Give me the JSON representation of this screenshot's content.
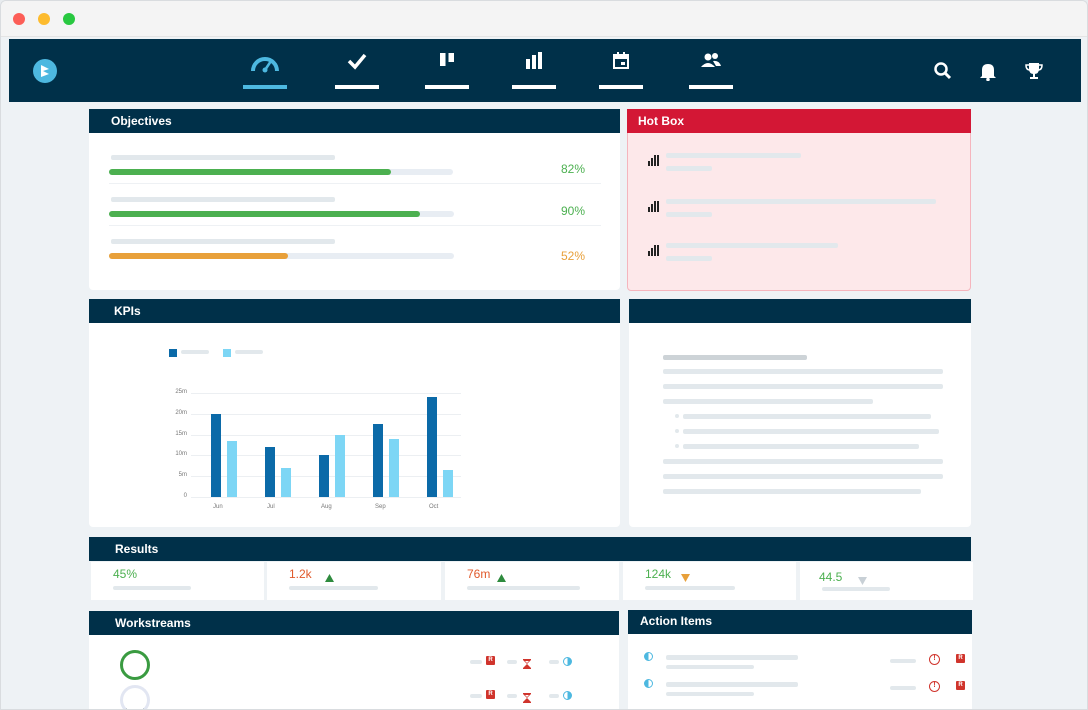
{
  "window": {
    "controls": [
      "close",
      "minimize",
      "maximize"
    ]
  },
  "nav": {
    "logo_icon": "logo-icon",
    "items": [
      {
        "name": "dashboard",
        "icon": "speedometer-icon",
        "active": true
      },
      {
        "name": "tasks",
        "icon": "checkmark-icon",
        "active": false
      },
      {
        "name": "board",
        "icon": "columns-icon",
        "active": false
      },
      {
        "name": "reports",
        "icon": "bar-chart-icon",
        "active": false
      },
      {
        "name": "calendar",
        "icon": "calendar-icon",
        "active": false
      },
      {
        "name": "people",
        "icon": "people-icon",
        "active": false
      }
    ],
    "right": [
      "search-icon",
      "bell-icon",
      "trophy-icon"
    ]
  },
  "objectives": {
    "title": "Objectives",
    "rows": [
      {
        "percent": "82%",
        "value": 0.82,
        "color": "#4cb050"
      },
      {
        "percent": "90%",
        "value": 0.9,
        "color": "#4cb050"
      },
      {
        "percent": "52%",
        "value": 0.52,
        "color": "#e8a03a"
      }
    ]
  },
  "hotbox": {
    "title": "Hot Box",
    "header_color": "#d31735",
    "body_color": "#fde8ea",
    "items": 3
  },
  "kpis": {
    "title": "KPIs"
  },
  "chart_data": {
    "type": "bar",
    "categories": [
      "Jun",
      "Jul",
      "Aug",
      "Sep",
      "Oct"
    ],
    "series": [
      {
        "name": "",
        "color": "#0b6aa8",
        "values": [
          20,
          12,
          10,
          17.5,
          24
        ]
      },
      {
        "name": "",
        "color": "#7dd6f5",
        "values": [
          13.5,
          7,
          15,
          14,
          6.5
        ]
      }
    ],
    "yticks": [
      "0",
      "5m",
      "10m",
      "15m",
      "20m",
      "25m"
    ],
    "ylim": [
      0,
      25
    ],
    "title": "",
    "xlabel": "",
    "ylabel": "",
    "legend": "top-left"
  },
  "results": {
    "title": "Results",
    "cells": [
      {
        "value": "45%",
        "color": "#4cb050",
        "trend": "none"
      },
      {
        "value": "1.2k",
        "color": "#e05a2c",
        "trend": "up",
        "trend_color": "#2e8b3e"
      },
      {
        "value": "76m",
        "color": "#e05a2c",
        "trend": "up",
        "trend_color": "#2e8b3e"
      },
      {
        "value": "124k",
        "color": "#4cb050",
        "trend": "down",
        "trend_color": "#e8a03a"
      },
      {
        "value": "44.5",
        "color": "#4cb050",
        "trend": "down",
        "trend_color": "#c8d0d6"
      }
    ]
  },
  "workstreams": {
    "title": "Workstreams",
    "badge": "R"
  },
  "action_items": {
    "title": "Action Items",
    "badge": "R",
    "alert": "!"
  }
}
